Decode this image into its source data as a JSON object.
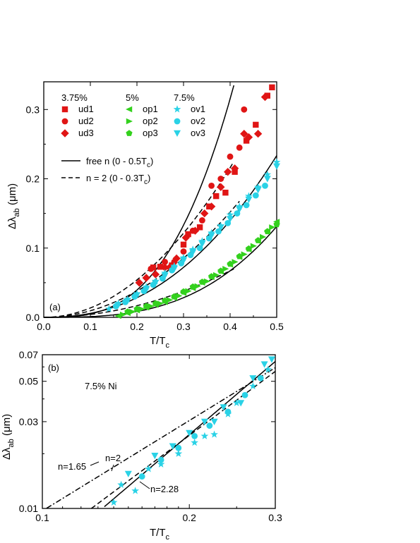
{
  "colors": {
    "red": "#e01515",
    "green": "#33d11d",
    "cyan": "#2ad2e6",
    "black": "#000000"
  },
  "panel_a": {
    "label": "(a)",
    "xlabel": "T/T",
    "xlabel_sub": "c",
    "ylabel_main": "Δλ",
    "ylabel_sub": "ab",
    "ylabel_unit": " (μm)",
    "legend": {
      "group_headers": [
        "3.75%",
        "5%",
        "7.5%"
      ],
      "groups": [
        [
          {
            "label": "ud1",
            "marker": "square",
            "color": "#e01515"
          },
          {
            "label": "ud2",
            "marker": "circle",
            "color": "#e01515"
          },
          {
            "label": "ud3",
            "marker": "diamond",
            "color": "#e01515"
          }
        ],
        [
          {
            "label": "op1",
            "marker": "triangle-left",
            "color": "#33d11d"
          },
          {
            "label": "op2",
            "marker": "triangle-right",
            "color": "#33d11d"
          },
          {
            "label": "op3",
            "marker": "pentagon",
            "color": "#33d11d"
          }
        ],
        [
          {
            "label": "ov1",
            "marker": "star",
            "color": "#2ad2e6"
          },
          {
            "label": "ov2",
            "marker": "circle",
            "color": "#2ad2e6"
          },
          {
            "label": "ov3",
            "marker": "triangle-down",
            "color": "#2ad2e6"
          }
        ]
      ],
      "fit_solid_label": "free n (0 - 0.5T",
      "fit_solid_sub": "c",
      "fit_solid_end": ")",
      "fit_dash_label": "n = 2 (0 - 0.3T",
      "fit_dash_sub": "c",
      "fit_dash_end": ")"
    }
  },
  "panel_b": {
    "label": "(b)",
    "title_text": "7.5% Ni",
    "xlabel": "T/T",
    "xlabel_sub": "c",
    "ylabel_main": "Δλ",
    "ylabel_sub": "ab",
    "ylabel_unit": " (μm)",
    "annotations": [
      "n=1.65",
      "n=2",
      "n=2.28"
    ]
  },
  "chart_data": [
    {
      "type": "scatter",
      "xlim": [
        0.0,
        0.5
      ],
      "ylim": [
        0.0,
        0.34
      ],
      "x_ticks": [
        0.0,
        0.1,
        0.2,
        0.3,
        0.4,
        0.5
      ],
      "y_ticks": [
        0.0,
        0.1,
        0.2,
        0.3
      ],
      "x_tick_labels": [
        "0.0",
        "0.1",
        "0.2",
        "0.3",
        "0.4",
        "0.5"
      ],
      "y_tick_labels": [
        "0.0",
        "0.1",
        "0.2",
        "0.3"
      ],
      "series": [
        {
          "name": "ud1",
          "group": "3.75%",
          "marker": "square",
          "color": "#e01515",
          "x": [
            0.235,
            0.25,
            0.275,
            0.3,
            0.31,
            0.335,
            0.355,
            0.37,
            0.39,
            0.41,
            0.435,
            0.455,
            0.48,
            0.49
          ],
          "y": [
            0.072,
            0.073,
            0.075,
            0.105,
            0.12,
            0.13,
            0.16,
            0.175,
            0.18,
            0.21,
            0.255,
            0.278,
            0.32,
            0.332
          ]
        },
        {
          "name": "ud2",
          "group": "3.75%",
          "marker": "circle",
          "color": "#e01515",
          "x": [
            0.23,
            0.26,
            0.28,
            0.3,
            0.32,
            0.34,
            0.36,
            0.38,
            0.4,
            0.42,
            0.43
          ],
          "y": [
            0.07,
            0.08,
            0.08,
            0.095,
            0.125,
            0.14,
            0.19,
            0.2,
            0.232,
            0.245,
            0.3
          ]
        },
        {
          "name": "ud3",
          "group": "3.75%",
          "marker": "diamond",
          "color": "#e01515",
          "x": [
            0.205,
            0.22,
            0.24,
            0.26,
            0.27,
            0.285,
            0.305,
            0.325,
            0.345,
            0.36,
            0.38,
            0.395,
            0.41,
            0.43,
            0.44,
            0.46,
            0.475
          ],
          "y": [
            0.05,
            0.057,
            0.062,
            0.072,
            0.072,
            0.085,
            0.115,
            0.125,
            0.15,
            0.16,
            0.188,
            0.21,
            0.215,
            0.265,
            0.26,
            0.265,
            0.318
          ]
        },
        {
          "name": "op1",
          "group": "5%",
          "marker": "triangle-left",
          "color": "#33d11d",
          "x": [
            0.16,
            0.18,
            0.2,
            0.22,
            0.24,
            0.26,
            0.28,
            0.3,
            0.32,
            0.34,
            0.36,
            0.38,
            0.4,
            0.42,
            0.44,
            0.46,
            0.48,
            0.5
          ],
          "y": [
            0.002,
            0.006,
            0.01,
            0.014,
            0.018,
            0.022,
            0.028,
            0.035,
            0.042,
            0.05,
            0.058,
            0.066,
            0.076,
            0.087,
            0.098,
            0.11,
            0.124,
            0.138
          ]
        },
        {
          "name": "op2",
          "group": "5%",
          "marker": "triangle-right",
          "color": "#33d11d",
          "x": [
            0.17,
            0.19,
            0.21,
            0.23,
            0.25,
            0.27,
            0.29,
            0.31,
            0.33,
            0.35,
            0.37,
            0.39,
            0.41,
            0.43,
            0.45,
            0.47,
            0.49
          ],
          "y": [
            0.004,
            0.008,
            0.012,
            0.016,
            0.02,
            0.025,
            0.031,
            0.038,
            0.045,
            0.052,
            0.061,
            0.07,
            0.08,
            0.091,
            0.103,
            0.116,
            0.13
          ]
        },
        {
          "name": "op3",
          "group": "5%",
          "marker": "pentagon",
          "color": "#33d11d",
          "x": [
            0.18,
            0.2,
            0.22,
            0.24,
            0.26,
            0.28,
            0.3,
            0.32,
            0.34,
            0.36,
            0.38,
            0.4,
            0.42,
            0.44,
            0.46,
            0.48,
            0.5
          ],
          "y": [
            0.008,
            0.012,
            0.016,
            0.02,
            0.024,
            0.03,
            0.037,
            0.044,
            0.051,
            0.059,
            0.067,
            0.077,
            0.088,
            0.099,
            0.111,
            0.124,
            0.134
          ]
        },
        {
          "name": "ov1",
          "group": "7.5%",
          "marker": "star",
          "color": "#2ad2e6",
          "x": [
            0.14,
            0.16,
            0.18,
            0.2,
            0.22,
            0.24,
            0.26,
            0.28,
            0.3,
            0.32,
            0.34,
            0.36,
            0.38,
            0.4,
            0.42,
            0.44,
            0.46,
            0.48,
            0.5
          ],
          "y": [
            0.012,
            0.02,
            0.026,
            0.034,
            0.044,
            0.052,
            0.064,
            0.074,
            0.086,
            0.098,
            0.11,
            0.122,
            0.132,
            0.148,
            0.16,
            0.175,
            0.188,
            0.206,
            0.224
          ]
        },
        {
          "name": "ov2",
          "group": "7.5%",
          "marker": "circle",
          "color": "#2ad2e6",
          "x": [
            0.155,
            0.175,
            0.195,
            0.215,
            0.235,
            0.255,
            0.275,
            0.295,
            0.315,
            0.335,
            0.355,
            0.375,
            0.395,
            0.415,
            0.435,
            0.455,
            0.475
          ],
          "y": [
            0.016,
            0.022,
            0.03,
            0.038,
            0.047,
            0.056,
            0.068,
            0.078,
            0.09,
            0.1,
            0.114,
            0.124,
            0.136,
            0.15,
            0.162,
            0.176,
            0.19
          ]
        },
        {
          "name": "ov3",
          "group": "7.5%",
          "marker": "triangle-down",
          "color": "#2ad2e6",
          "x": [
            0.16,
            0.18,
            0.2,
            0.22,
            0.24,
            0.26,
            0.28,
            0.3,
            0.32,
            0.34,
            0.36,
            0.38,
            0.4,
            0.42,
            0.44,
            0.46,
            0.48,
            0.5
          ],
          "y": [
            0.018,
            0.024,
            0.032,
            0.04,
            0.05,
            0.06,
            0.07,
            0.082,
            0.094,
            0.106,
            0.118,
            0.13,
            0.142,
            0.156,
            0.17,
            0.184,
            0.2,
            0.218
          ]
        }
      ],
      "fits": [
        {
          "style": "solid",
          "label": "free n (0 - 0.5Tc)",
          "prefactor": 4.93,
          "n": 3.0
        },
        {
          "style": "solid",
          "label": "free n (0 - 0.5Tc)",
          "prefactor": 1.15,
          "n": 2.3
        },
        {
          "style": "solid",
          "label": "free n (0 - 0.5Tc)",
          "prefactor": 1.05,
          "n": 3.0
        },
        {
          "style": "dashed",
          "label": "n = 2 (0 - 0.3Tc)",
          "prefactor": 1.35,
          "n": 2,
          "x_max": 0.41
        },
        {
          "style": "dashed",
          "label": "n = 2 (0 - 0.3Tc)",
          "prefactor": 0.95,
          "n": 2,
          "x_max": 0.42
        },
        {
          "style": "dashed",
          "label": "n = 2 (0 - 0.3Tc)",
          "prefactor": 0.42,
          "n": 2,
          "x_max": 0.41
        }
      ]
    },
    {
      "type": "scatter",
      "log_x": true,
      "log_y": true,
      "xlim": [
        0.1,
        0.3
      ],
      "ylim": [
        0.01,
        0.07
      ],
      "x_ticks": [
        0.1,
        0.2,
        0.3
      ],
      "y_ticks": [
        0.01,
        0.03,
        0.05,
        0.07
      ],
      "x_tick_labels": [
        "0.1",
        "0.2",
        "0.3"
      ],
      "y_tick_labels": [
        "0.01",
        "0.03",
        "0.05",
        "0.07"
      ],
      "series": [
        {
          "name": "ov1",
          "marker": "star",
          "color": "#2ad2e6",
          "x": [
            0.14,
            0.145,
            0.155,
            0.165,
            0.175,
            0.19,
            0.205,
            0.215,
            0.225,
            0.24,
            0.25,
            0.27,
            0.29
          ],
          "y": [
            0.0108,
            0.0135,
            0.0125,
            0.0165,
            0.0175,
            0.02,
            0.023,
            0.025,
            0.0255,
            0.033,
            0.038,
            0.047,
            0.058
          ]
        },
        {
          "name": "ov2",
          "marker": "circle",
          "color": "#2ad2e6",
          "x": [
            0.16,
            0.175,
            0.19,
            0.205,
            0.22,
            0.24,
            0.26,
            0.28
          ],
          "y": [
            0.015,
            0.0185,
            0.0215,
            0.025,
            0.0285,
            0.034,
            0.042,
            0.052
          ]
        },
        {
          "name": "ov3",
          "marker": "triangle-down",
          "color": "#2ad2e6",
          "x": [
            0.15,
            0.17,
            0.185,
            0.2,
            0.215,
            0.225,
            0.235,
            0.255,
            0.27,
            0.285,
            0.295
          ],
          "y": [
            0.0155,
            0.0195,
            0.022,
            0.026,
            0.03,
            0.03,
            0.036,
            0.038,
            0.052,
            0.062,
            0.066
          ]
        }
      ],
      "fits": [
        {
          "style": "dashdot",
          "label": "n=1.65",
          "prefactor": 0.433,
          "n": 1.65
        },
        {
          "style": "dashed",
          "label": "n=2",
          "prefactor": 0.63,
          "n": 2
        },
        {
          "style": "solid",
          "label": "n=2.28",
          "prefactor": 1.0,
          "n": 2.28
        }
      ]
    }
  ]
}
